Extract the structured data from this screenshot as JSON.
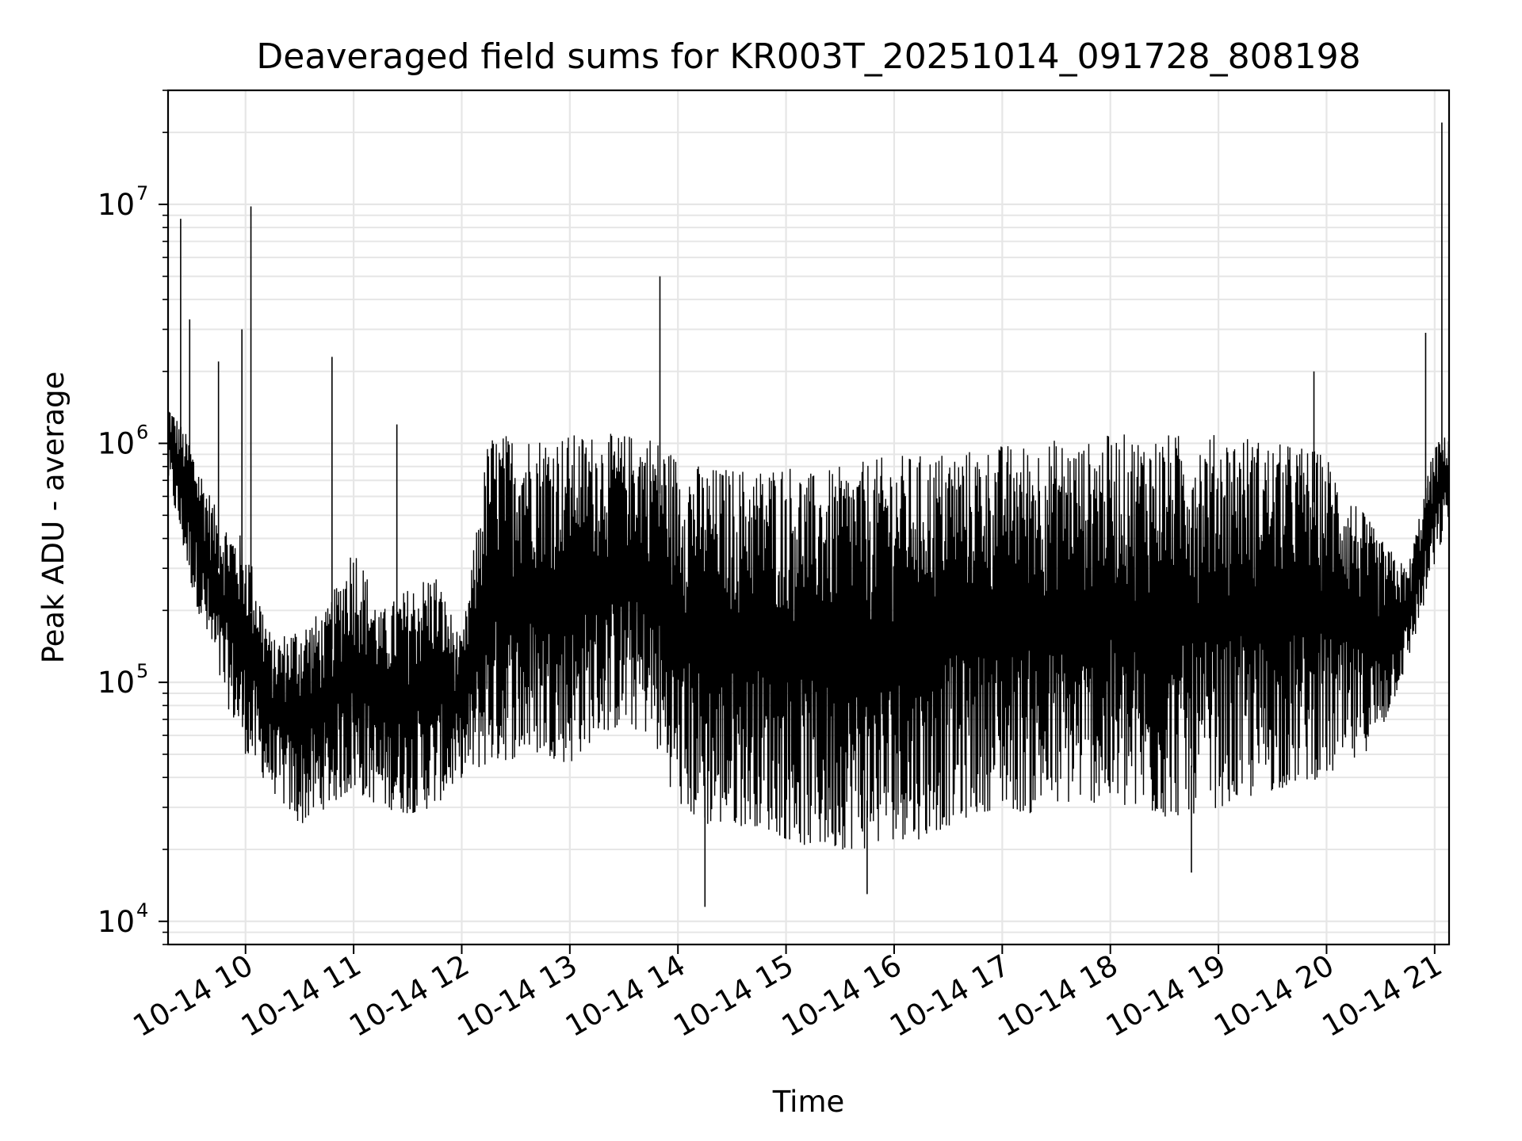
{
  "chart_data": {
    "type": "line",
    "title": "Deaveraged field sums for KR003T_20251014_091728_808198",
    "xlabel": "Time",
    "ylabel": "Peak ADU - average",
    "yscale": "log",
    "grid": true,
    "line_color": "#000000",
    "grid_color": "#e6e6e6",
    "xlim": [
      "2025-10-14 09:17",
      "2025-10-14 21:08"
    ],
    "ylim": [
      8000,
      30000000
    ],
    "x_ticks": [
      {
        "value": "2025-10-14 10:00",
        "label": "10-14 10"
      },
      {
        "value": "2025-10-14 11:00",
        "label": "10-14 11"
      },
      {
        "value": "2025-10-14 12:00",
        "label": "10-14 12"
      },
      {
        "value": "2025-10-14 13:00",
        "label": "10-14 13"
      },
      {
        "value": "2025-10-14 14:00",
        "label": "10-14 14"
      },
      {
        "value": "2025-10-14 15:00",
        "label": "10-14 15"
      },
      {
        "value": "2025-10-14 16:00",
        "label": "10-14 16"
      },
      {
        "value": "2025-10-14 17:00",
        "label": "10-14 17"
      },
      {
        "value": "2025-10-14 18:00",
        "label": "10-14 18"
      },
      {
        "value": "2025-10-14 19:00",
        "label": "10-14 19"
      },
      {
        "value": "2025-10-14 20:00",
        "label": "10-14 20"
      },
      {
        "value": "2025-10-14 21:00",
        "label": "10-14 21"
      }
    ],
    "y_ticks": [
      {
        "value": 10000,
        "base": "10",
        "exp": "4"
      },
      {
        "value": 100000,
        "base": "10",
        "exp": "5"
      },
      {
        "value": 1000000,
        "base": "10",
        "exp": "6"
      },
      {
        "value": 10000000,
        "base": "10",
        "exp": "7"
      }
    ],
    "envelope": {
      "time": [
        "09:17",
        "09:30",
        "09:45",
        "10:00",
        "10:15",
        "10:30",
        "10:45",
        "11:00",
        "11:15",
        "11:30",
        "11:45",
        "12:00",
        "12:15",
        "12:30",
        "12:45",
        "13:00",
        "13:15",
        "13:30",
        "13:45",
        "14:00",
        "14:15",
        "14:30",
        "14:45",
        "15:00",
        "15:15",
        "15:30",
        "15:45",
        "16:00",
        "16:15",
        "16:30",
        "16:45",
        "17:00",
        "17:15",
        "17:30",
        "17:45",
        "18:00",
        "18:15",
        "18:30",
        "18:45",
        "19:00",
        "19:15",
        "19:30",
        "19:45",
        "20:00",
        "20:15",
        "20:30",
        "20:45",
        "21:00",
        "21:08"
      ],
      "upper": [
        1500000,
        1000000,
        500000,
        400000,
        150000,
        180000,
        200000,
        400000,
        200000,
        250000,
        300000,
        150000,
        1100000,
        1100000,
        1100000,
        1100000,
        1100000,
        1100000,
        1100000,
        900000,
        800000,
        800000,
        800000,
        850000,
        750000,
        800000,
        850000,
        900000,
        900000,
        950000,
        950000,
        1000000,
        1000000,
        1050000,
        1000000,
        1100000,
        1100000,
        1100000,
        1100000,
        1100000,
        1100000,
        1000000,
        1000000,
        900000,
        600000,
        400000,
        300000,
        1000000,
        1100000
      ],
      "lower": [
        700000,
        250000,
        100000,
        50000,
        35000,
        25000,
        30000,
        35000,
        30000,
        28000,
        30000,
        40000,
        45000,
        48000,
        50000,
        45000,
        60000,
        65000,
        60000,
        30000,
        25000,
        25000,
        25000,
        22000,
        20000,
        20000,
        20000,
        22000,
        22000,
        25000,
        28000,
        30000,
        28000,
        30000,
        32000,
        30000,
        28000,
        27000,
        28000,
        30000,
        32000,
        35000,
        38000,
        40000,
        45000,
        60000,
        120000,
        300000,
        500000
      ]
    },
    "spikes": [
      {
        "time": "09:24",
        "value": 8700000
      },
      {
        "time": "09:29",
        "value": 3300000
      },
      {
        "time": "09:45",
        "value": 2200000
      },
      {
        "time": "09:58",
        "value": 3000000
      },
      {
        "time": "10:03",
        "value": 9800000
      },
      {
        "time": "10:48",
        "value": 2300000
      },
      {
        "time": "11:24",
        "value": 1200000
      },
      {
        "time": "13:50",
        "value": 5000000
      },
      {
        "time": "19:53",
        "value": 2000000
      },
      {
        "time": "20:55",
        "value": 2900000
      },
      {
        "time": "21:04",
        "value": 22000000
      }
    ],
    "dips": [
      {
        "time": "14:15",
        "value": 11500
      },
      {
        "time": "15:45",
        "value": 13000
      },
      {
        "time": "18:45",
        "value": 16000
      }
    ]
  }
}
